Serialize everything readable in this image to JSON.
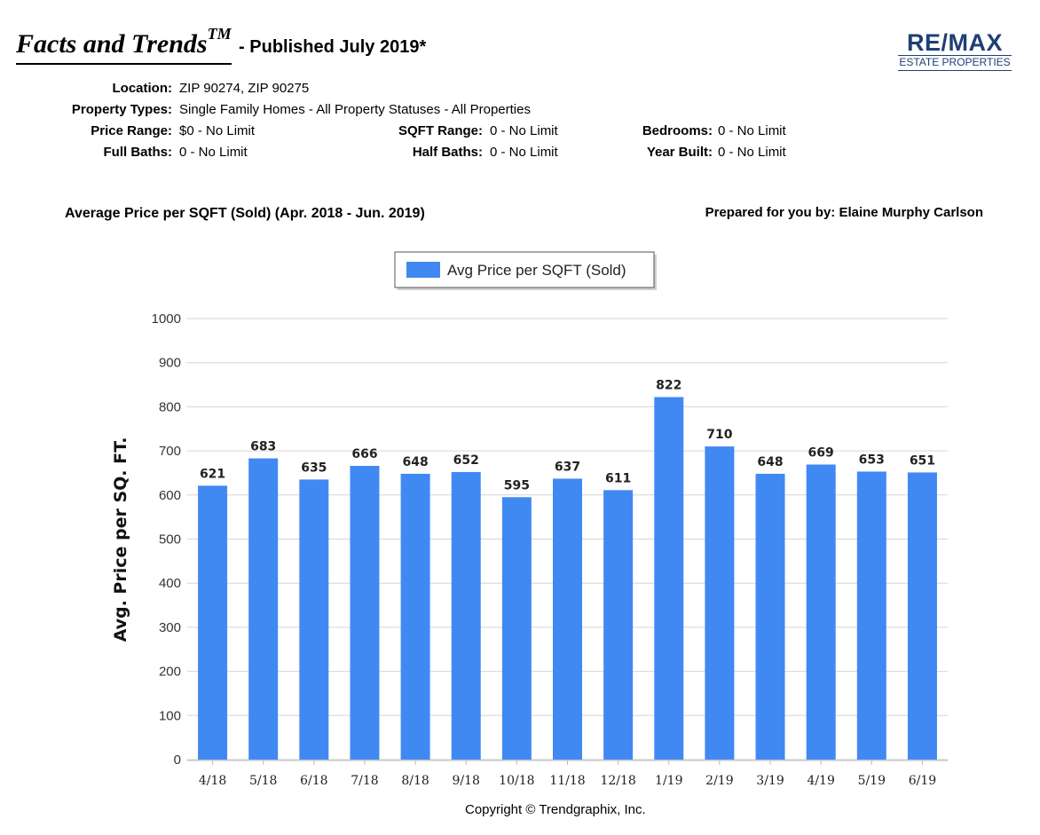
{
  "header": {
    "brand_title": "Facts and Trends",
    "brand_tm": "TM",
    "published": "- Published July 2019*"
  },
  "logo": {
    "main": "RE/MAX",
    "sub": "ESTATE PROPERTIES",
    "color": "#1f3f75"
  },
  "filters": {
    "location_label": "Location:",
    "location_value": "ZIP 90274, ZIP 90275",
    "property_types_label": "Property Types:",
    "property_types_value": "Single Family Homes - All Property Statuses - All Properties",
    "price_range_label": "Price Range:",
    "price_range_value": "$0 - No Limit",
    "sqft_range_label": "SQFT Range:",
    "sqft_range_value": "0 - No Limit",
    "bedrooms_label": "Bedrooms:",
    "bedrooms_value": "0 - No Limit",
    "full_baths_label": "Full Baths:",
    "full_baths_value": "0 - No Limit",
    "half_baths_label": "Half Baths:",
    "half_baths_value": "0 - No Limit",
    "year_built_label": "Year Built:",
    "year_built_value": "0 - No Limit"
  },
  "section": {
    "chart_heading": "Average Price per SQFT (Sold) (Apr. 2018 - Jun. 2019)",
    "prepared_by": "Prepared for you by: Elaine Murphy Carlson"
  },
  "chart_data": {
    "type": "bar",
    "categories": [
      "4/18",
      "5/18",
      "6/18",
      "7/18",
      "8/18",
      "9/18",
      "10/18",
      "11/18",
      "12/18",
      "1/19",
      "2/19",
      "3/19",
      "4/19",
      "5/19",
      "6/19"
    ],
    "series": [
      {
        "name": "Avg Price per SQFT (Sold)",
        "values": [
          621,
          683,
          635,
          666,
          648,
          652,
          595,
          637,
          611,
          822,
          710,
          648,
          669,
          653,
          651
        ],
        "color": "#4189f2"
      }
    ],
    "xlabel": "",
    "ylabel": "Avg. Price per SQ. FT.",
    "ylim": [
      0,
      1000
    ],
    "yticks": [
      0,
      100,
      200,
      300,
      400,
      500,
      600,
      700,
      800,
      900,
      1000
    ],
    "grid": true,
    "legend": "top-center",
    "data_labels": true
  },
  "footer": {
    "copyright": "Copyright © Trendgraphix, Inc."
  }
}
